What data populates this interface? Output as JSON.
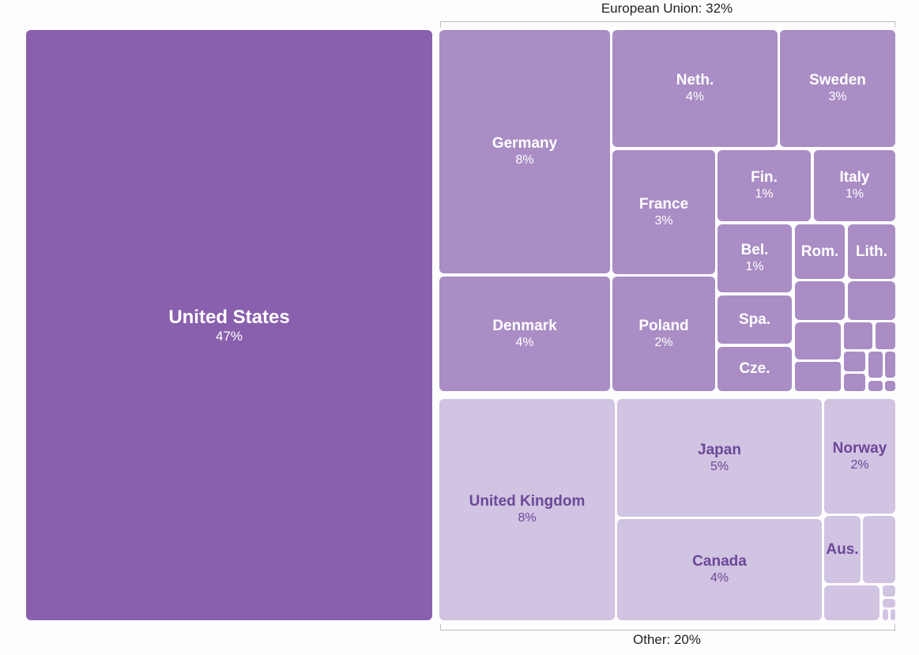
{
  "colors": {
    "us": "#8960ad",
    "eu": "#a98dc4",
    "other": "#d1c3e2",
    "light_text": "#ffffff",
    "dark_text": "#6a4897"
  },
  "group_labels": {
    "eu": "European Union: 32%",
    "other": "Other: 20%"
  },
  "chart_data": {
    "type": "treemap",
    "title": "",
    "groups": [
      {
        "label": "European Union: 32%",
        "share": 32
      },
      {
        "label": "Other: 20%",
        "share": 20
      }
    ],
    "cells": [
      {
        "name": "United States",
        "value_label": "47%",
        "value": 47,
        "group": "us"
      },
      {
        "name": "Germany",
        "value_label": "8%",
        "value": 8,
        "group": "eu"
      },
      {
        "name": "Neth.",
        "value_label": "4%",
        "value": 4,
        "group": "eu"
      },
      {
        "name": "Sweden",
        "value_label": "3%",
        "value": 3,
        "group": "eu"
      },
      {
        "name": "France",
        "value_label": "3%",
        "value": 3,
        "group": "eu"
      },
      {
        "name": "Fin.",
        "value_label": "1%",
        "value": 1,
        "group": "eu"
      },
      {
        "name": "Italy",
        "value_label": "1%",
        "value": 1,
        "group": "eu"
      },
      {
        "name": "Bel.",
        "value_label": "1%",
        "value": 1,
        "group": "eu"
      },
      {
        "name": "Rom.",
        "value_label": "",
        "value": null,
        "group": "eu"
      },
      {
        "name": "Lith.",
        "value_label": "",
        "value": null,
        "group": "eu"
      },
      {
        "name": "Denmark",
        "value_label": "4%",
        "value": 4,
        "group": "eu"
      },
      {
        "name": "Poland",
        "value_label": "2%",
        "value": 2,
        "group": "eu"
      },
      {
        "name": "Spa.",
        "value_label": "",
        "value": null,
        "group": "eu"
      },
      {
        "name": "Cze.",
        "value_label": "",
        "value": null,
        "group": "eu"
      },
      {
        "name": "",
        "value_label": "",
        "value": null,
        "group": "eu"
      },
      {
        "name": "",
        "value_label": "",
        "value": null,
        "group": "eu"
      },
      {
        "name": "",
        "value_label": "",
        "value": null,
        "group": "eu"
      },
      {
        "name": "",
        "value_label": "",
        "value": null,
        "group": "eu"
      },
      {
        "name": "",
        "value_label": "",
        "value": null,
        "group": "eu"
      },
      {
        "name": "",
        "value_label": "",
        "value": null,
        "group": "eu"
      },
      {
        "name": "",
        "value_label": "",
        "value": null,
        "group": "eu"
      },
      {
        "name": "",
        "value_label": "",
        "value": null,
        "group": "eu"
      },
      {
        "name": "",
        "value_label": "",
        "value": null,
        "group": "eu"
      },
      {
        "name": "",
        "value_label": "",
        "value": null,
        "group": "eu"
      },
      {
        "name": "",
        "value_label": "",
        "value": null,
        "group": "eu"
      },
      {
        "name": "",
        "value_label": "",
        "value": null,
        "group": "eu"
      },
      {
        "name": "",
        "value_label": "",
        "value": null,
        "group": "eu"
      },
      {
        "name": "United Kingdom",
        "value_label": "8%",
        "value": 8,
        "group": "other"
      },
      {
        "name": "Japan",
        "value_label": "5%",
        "value": 5,
        "group": "other"
      },
      {
        "name": "Canada",
        "value_label": "4%",
        "value": 4,
        "group": "other"
      },
      {
        "name": "Norway",
        "value_label": "2%",
        "value": 2,
        "group": "other"
      },
      {
        "name": "Aus.",
        "value_label": "",
        "value": null,
        "group": "other"
      },
      {
        "name": "",
        "value_label": "",
        "value": null,
        "group": "other"
      },
      {
        "name": "",
        "value_label": "",
        "value": null,
        "group": "other"
      },
      {
        "name": "",
        "value_label": "",
        "value": null,
        "group": "other"
      },
      {
        "name": "",
        "value_label": "",
        "value": null,
        "group": "other"
      },
      {
        "name": "",
        "value_label": "",
        "value": null,
        "group": "other"
      },
      {
        "name": "",
        "value_label": "",
        "value": null,
        "group": "other"
      }
    ]
  }
}
